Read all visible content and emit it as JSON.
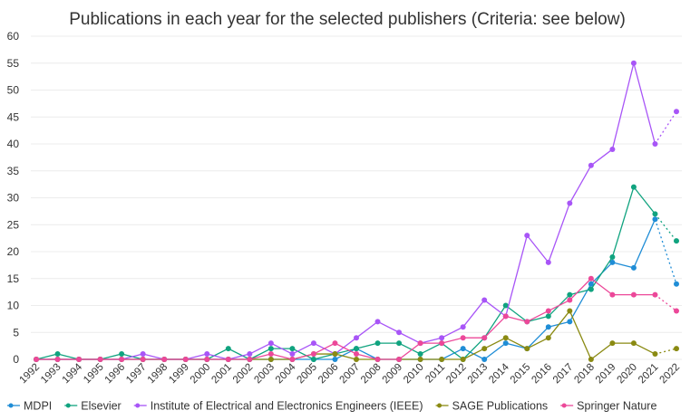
{
  "chart_data": {
    "type": "line",
    "title": "Publications in each year for the selected publishers (Criteria: see below)",
    "xlabel": "",
    "ylabel": "",
    "ylim": [
      0,
      60
    ],
    "yticks": [
      0,
      5,
      10,
      15,
      20,
      25,
      30,
      35,
      40,
      45,
      50,
      55,
      60
    ],
    "categories": [
      "1992",
      "1993",
      "1994",
      "1995",
      "1996",
      "1997",
      "1998",
      "1999",
      "2000",
      "2001",
      "2002",
      "2003",
      "2004",
      "2005",
      "2006",
      "2007",
      "2008",
      "2009",
      "2010",
      "2011",
      "2012",
      "2013",
      "2014",
      "2015",
      "2016",
      "2017",
      "2018",
      "2019",
      "2020",
      "2021",
      "2022"
    ],
    "grid": true,
    "legend_position": "bottom",
    "projected_last_point": true,
    "series": [
      {
        "name": "MDPI",
        "color": "#1f8dd6",
        "values": [
          0,
          0,
          0,
          0,
          0,
          0,
          0,
          0,
          0,
          0,
          0,
          0,
          0,
          0,
          0,
          2,
          0,
          0,
          0,
          0,
          2,
          0,
          3,
          2,
          6,
          7,
          14,
          18,
          17,
          26,
          14
        ]
      },
      {
        "name": "Elsevier",
        "color": "#10a37f",
        "values": [
          0,
          1,
          0,
          0,
          1,
          0,
          0,
          0,
          0,
          2,
          0,
          2,
          2,
          0,
          1,
          2,
          3,
          3,
          1,
          3,
          0,
          4,
          10,
          7,
          8,
          12,
          13,
          19,
          32,
          27,
          22
        ]
      },
      {
        "name": "Institute of Electrical and Electronics Engineers (IEEE)",
        "color": "#a855f7",
        "values": [
          0,
          0,
          0,
          0,
          0,
          1,
          0,
          0,
          1,
          0,
          1,
          3,
          1,
          3,
          1,
          4,
          7,
          5,
          3,
          4,
          6,
          11,
          8,
          23,
          18,
          29,
          36,
          39,
          55,
          40,
          46
        ]
      },
      {
        "name": "SAGE Publications",
        "color": "#8a8a12",
        "values": [
          0,
          0,
          0,
          0,
          0,
          0,
          0,
          0,
          0,
          0,
          0,
          0,
          0,
          1,
          1,
          0,
          0,
          0,
          0,
          0,
          0,
          2,
          4,
          2,
          4,
          9,
          0,
          3,
          3,
          1,
          2
        ]
      },
      {
        "name": "Springer Nature",
        "color": "#ec4899",
        "values": [
          0,
          0,
          0,
          0,
          0,
          0,
          0,
          0,
          0,
          0,
          0,
          1,
          0,
          1,
          3,
          1,
          0,
          0,
          3,
          3,
          4,
          4,
          8,
          7,
          9,
          11,
          15,
          12,
          12,
          12,
          9
        ]
      }
    ]
  }
}
